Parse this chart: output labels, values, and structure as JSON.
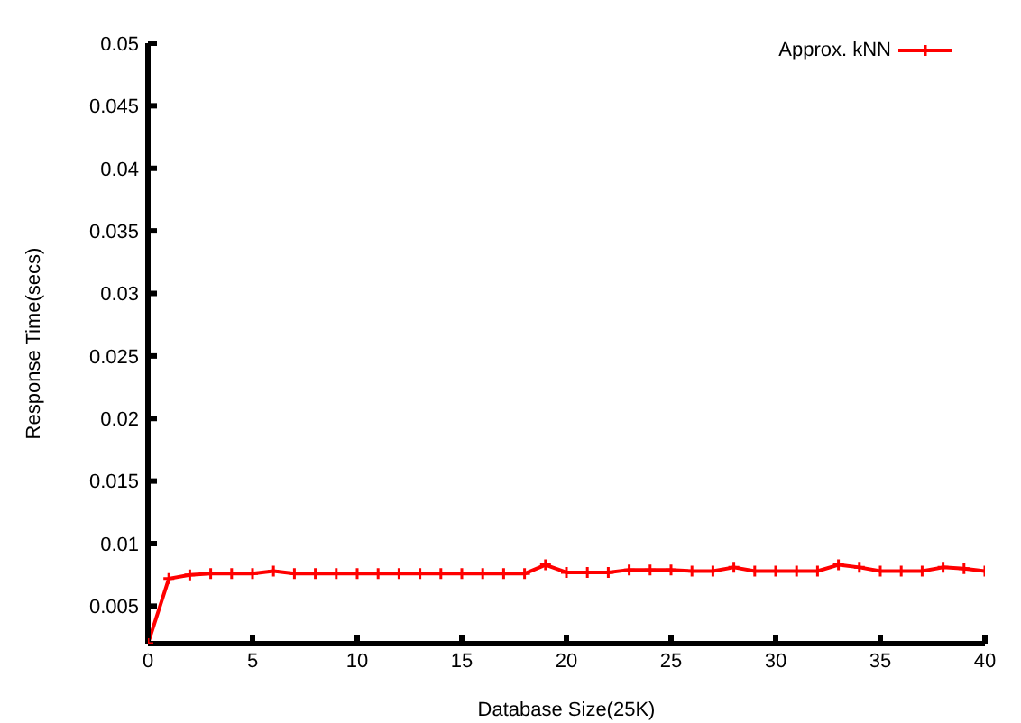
{
  "chart_data": {
    "type": "line",
    "xlabel": "Database Size(25K)",
    "ylabel": "Response Time(secs)",
    "x": [
      0,
      1,
      2,
      3,
      4,
      5,
      6,
      7,
      8,
      9,
      10,
      11,
      12,
      13,
      14,
      15,
      16,
      17,
      18,
      19,
      20,
      21,
      22,
      23,
      24,
      25,
      26,
      27,
      28,
      29,
      30,
      31,
      32,
      33,
      34,
      35,
      36,
      37,
      38,
      39,
      40
    ],
    "series": [
      {
        "name": "Approx. kNN",
        "color": "#ff0000",
        "values": [
          0.002,
          0.0072,
          0.0075,
          0.0076,
          0.0076,
          0.0076,
          0.0078,
          0.0076,
          0.0076,
          0.0076,
          0.0076,
          0.0076,
          0.0076,
          0.0076,
          0.0076,
          0.0076,
          0.0076,
          0.0076,
          0.0076,
          0.0083,
          0.0077,
          0.0077,
          0.0077,
          0.0079,
          0.0079,
          0.0079,
          0.0078,
          0.0078,
          0.0081,
          0.0078,
          0.0078,
          0.0078,
          0.0078,
          0.0083,
          0.0081,
          0.0078,
          0.0078,
          0.0078,
          0.0081,
          0.008,
          0.0078
        ]
      }
    ],
    "xlim": [
      0,
      40
    ],
    "xticks": [
      0,
      5,
      10,
      15,
      20,
      25,
      30,
      35,
      40
    ],
    "ylim": [
      0.002,
      0.05
    ],
    "yticks": [
      0.005,
      0.01,
      0.015,
      0.02,
      0.025,
      0.03,
      0.035,
      0.04,
      0.045,
      0.05
    ],
    "grid": false,
    "legend": "top right",
    "marker": "cross",
    "line_style": "solid"
  }
}
